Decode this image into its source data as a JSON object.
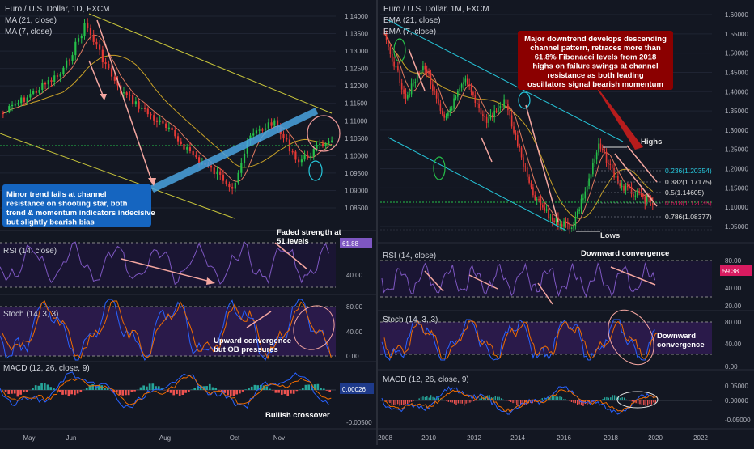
{
  "colors": {
    "bg": "#131722",
    "grid": "#1f2433",
    "axis_text": "#b2b5be",
    "separator": "#2a2e39",
    "up": "#26c14a",
    "down": "#e53935",
    "ma21": "#c9a227",
    "ma7": "#e07a5f",
    "rsi": "#7e57c2",
    "rsi_band": "#1a1533",
    "stoch_k": "#2962ff",
    "stoch_d": "#ef6c00",
    "stoch_band": "#2a1a4a",
    "macd": "#2962ff",
    "signal": "#ef6c00",
    "hist_pos": "#26a69a",
    "hist_neg": "#ef5350",
    "channel_yellow": "#c9c63a",
    "channel_cyan": "#26c6da",
    "trend_blue": "#4aa3df",
    "arrow": "#f4a6a0",
    "note_blue": "#1565c0",
    "note_red": "#8b0000",
    "fib_cyan": "#26c6da",
    "fib_pink": "#d81b60",
    "tag_purple": "#7e57c2",
    "tag_pink": "#d81b60",
    "tag_blue": "#1e3a8a"
  },
  "left_panel": {
    "title": "Euro / U.S. Dollar, 1D, FXCM",
    "legend": [
      "MA (21, close)",
      "MA (7, close)"
    ],
    "x_ticks": [
      "May",
      "Jun",
      "Aug",
      "Oct",
      "Nov"
    ],
    "price_ticks": [
      "1.14000",
      "1.13500",
      "1.13000",
      "1.12500",
      "1.12000",
      "1.11500",
      "1.11000",
      "1.10500",
      "1.10000",
      "1.09500",
      "1.09000",
      "1.08500"
    ],
    "annotation": "Minor trend fails at channel resistance on shooting star, both trend & momentum indicators indecisive but slightly bearish bias",
    "rsi": {
      "label": "RSI (14, close)",
      "ticks": [
        "40.00"
      ],
      "value": "61.88",
      "note": "Faded strength at 51 levels"
    },
    "stoch": {
      "label": "Stoch (14, 3, 3)",
      "ticks": [
        "80.00",
        "40.00",
        "0.00"
      ],
      "note": "Upward convergence but OB pressures"
    },
    "macd": {
      "label": "MACD (12, 26, close, 9)",
      "ticks": [
        "0.00026",
        "-0.00500"
      ],
      "value": "0.00026",
      "note": "Bullish crossover"
    }
  },
  "right_panel": {
    "title": "Euro / U.S. Dollar, 1M, FXCM",
    "legend": [
      "EMA (21, close)",
      "EMA (7, close)"
    ],
    "x_ticks": [
      "2008",
      "2010",
      "2012",
      "2014",
      "2016",
      "2018",
      "2020",
      "2022"
    ],
    "price_ticks": [
      "1.60000",
      "1.55000",
      "1.50000",
      "1.45000",
      "1.40000",
      "1.35000",
      "1.30000",
      "1.25000",
      "1.20000",
      "1.15000",
      "1.10000",
      "1.05000"
    ],
    "annotation": "Major downtrend develops descending channel pattern, retraces more than 61.8% Fibonacci levels from 2018 highs on failure swings at channel resistance as both leading oscillators signal bearish momentum",
    "fib": [
      "0.236(1.20354)",
      "0.382(1.17175)",
      "0.5(1.14605)",
      "0.618(1.12035)",
      "0.786(1.08377)"
    ],
    "highs_label": "Highs",
    "lows_label": "Lows",
    "rsi": {
      "label": "RSI (14, close)",
      "ticks": [
        "80.00",
        "40.00",
        "20.00"
      ],
      "value": "59.38",
      "note": "Downward convergence"
    },
    "stoch": {
      "label": "Stoch (14, 3, 3)",
      "ticks": [
        "80.00",
        "40.00",
        "0.00"
      ],
      "note": "Downward convergence"
    },
    "macd": {
      "label": "MACD (12, 26, close, 9)",
      "ticks": [
        "0.05000",
        "0.00000",
        "-0.05000"
      ]
    }
  }
}
